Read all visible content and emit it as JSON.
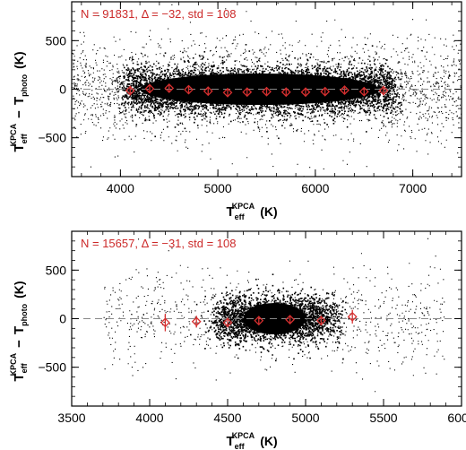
{
  "colors": {
    "points": "#000000",
    "markers": "#d62f2f",
    "annotation": "#cc2a2a",
    "zero_line": "#888888"
  },
  "chart_data": [
    {
      "type": "scatter",
      "panel": "top",
      "annotation": "N = 91831, Δ = −32, std = 108",
      "xlim": [
        3500,
        7500
      ],
      "ylim": [
        -900,
        900
      ],
      "x_ticks": [
        4000,
        5000,
        6000,
        7000
      ],
      "y_ticks": [
        -500,
        0,
        500
      ],
      "xlabel": {
        "main": "T",
        "sub": "eff",
        "sup": "KPCA",
        "unit": "(K)"
      },
      "ylabel": {
        "main1": "T",
        "sub1": "eff",
        "sup1": "KPCA",
        "op": "−",
        "main2": "T",
        "sub2": "photo",
        "unit": "(K)"
      },
      "zero_line": 0,
      "scatter_density": {
        "count": 91831,
        "core_x": [
          4050,
          6800
        ],
        "core_y_sigma": 108,
        "cloud_x": [
          3500,
          7500
        ],
        "cloud_y": [
          -900,
          900
        ]
      },
      "binned_means": [
        {
          "x": 4100,
          "y": -15,
          "err": 50
        },
        {
          "x": 4300,
          "y": 5,
          "err": 45
        },
        {
          "x": 4500,
          "y": 10,
          "err": 40
        },
        {
          "x": 4700,
          "y": -5,
          "err": 45
        },
        {
          "x": 4900,
          "y": -20,
          "err": 45
        },
        {
          "x": 5100,
          "y": -35,
          "err": 45
        },
        {
          "x": 5300,
          "y": -30,
          "err": 45
        },
        {
          "x": 5500,
          "y": -25,
          "err": 45
        },
        {
          "x": 5700,
          "y": -30,
          "err": 45
        },
        {
          "x": 5900,
          "y": -30,
          "err": 45
        },
        {
          "x": 6100,
          "y": -25,
          "err": 45
        },
        {
          "x": 6300,
          "y": -10,
          "err": 45
        },
        {
          "x": 6500,
          "y": -25,
          "err": 45
        },
        {
          "x": 6700,
          "y": -15,
          "err": 50
        }
      ]
    },
    {
      "type": "scatter",
      "panel": "bottom",
      "annotation": "N = 15657, Δ = −31, std = 108",
      "xlim": [
        3500,
        6000
      ],
      "ylim": [
        -900,
        900
      ],
      "x_ticks": [
        3500,
        4000,
        4500,
        5000,
        5500,
        6000
      ],
      "y_ticks": [
        -500,
        0,
        500
      ],
      "xlabel": {
        "main": "T",
        "sub": "eff",
        "sup": "KPCA",
        "unit": "(K)"
      },
      "ylabel": {
        "main1": "T",
        "sub1": "eff",
        "sup1": "KPCA",
        "op": "−",
        "main2": "T",
        "sub2": "photo",
        "unit": "(K)"
      },
      "zero_line": 0,
      "scatter_density": {
        "count": 15657,
        "core_x": [
          4450,
          5150
        ],
        "core_y_sigma": 108,
        "cloud_x": [
          3700,
          5900
        ],
        "cloud_y": [
          -900,
          900
        ]
      },
      "binned_means": [
        {
          "x": 4100,
          "y": -40,
          "err": 90
        },
        {
          "x": 4300,
          "y": -30,
          "err": 60
        },
        {
          "x": 4500,
          "y": -40,
          "err": 50
        },
        {
          "x": 4700,
          "y": -20,
          "err": 45
        },
        {
          "x": 4900,
          "y": -10,
          "err": 45
        },
        {
          "x": 5100,
          "y": -20,
          "err": 50
        },
        {
          "x": 5300,
          "y": 20,
          "err": 70
        }
      ]
    }
  ]
}
